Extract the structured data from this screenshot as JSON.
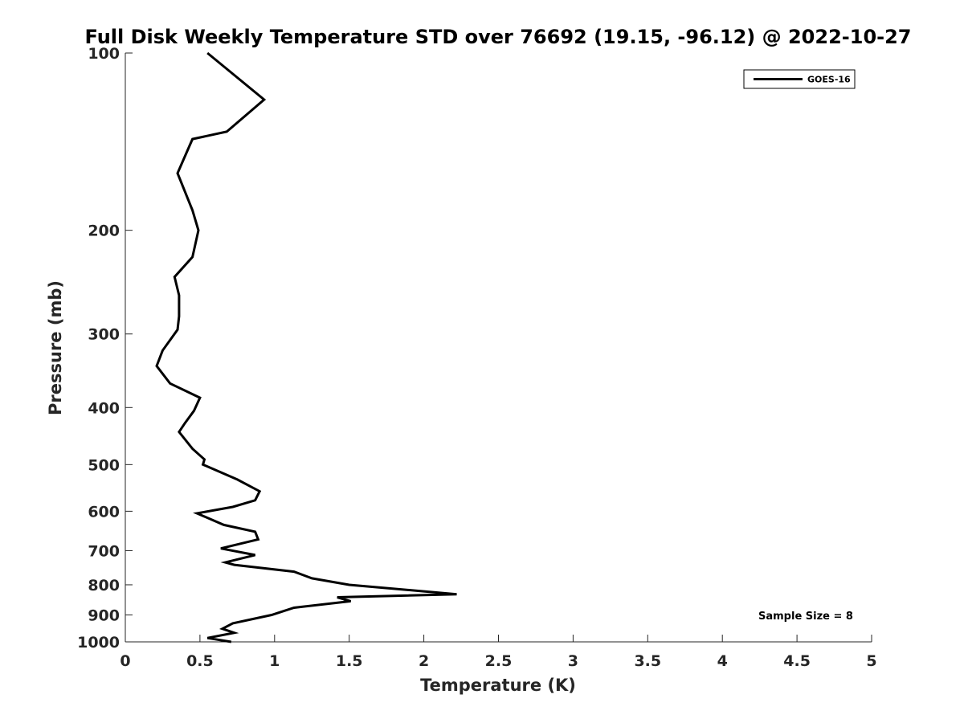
{
  "chart_data": {
    "type": "line",
    "title": "Full Disk Weekly Temperature STD over 76692 (19.15, -96.12) @ 2022-10-27",
    "xlabel": "Temperature (K)",
    "ylabel": "Pressure (mb)",
    "xlim": [
      0,
      5
    ],
    "ylim": [
      1000,
      100
    ],
    "y_scale": "log",
    "y_reversed": true,
    "x_ticks": [
      "0",
      "0.5",
      "1",
      "1.5",
      "2",
      "2.5",
      "3",
      "3.5",
      "4",
      "4.5",
      "5"
    ],
    "y_ticks": [
      "100",
      "200",
      "300",
      "400",
      "500",
      "600",
      "700",
      "800",
      "900",
      "1000"
    ],
    "grid": false,
    "legend_position": "top-right",
    "legend": [
      "GOES-16"
    ],
    "annotation": "Sample Size = 8",
    "series": [
      {
        "name": "GOES-16",
        "color": "#000000",
        "points": [
          [
            0.55,
            100
          ],
          [
            0.93,
            120
          ],
          [
            0.68,
            136
          ],
          [
            0.45,
            140
          ],
          [
            0.35,
            160
          ],
          [
            0.45,
            185
          ],
          [
            0.49,
            200
          ],
          [
            0.45,
            222
          ],
          [
            0.33,
            240
          ],
          [
            0.36,
            258
          ],
          [
            0.36,
            280
          ],
          [
            0.35,
            295
          ],
          [
            0.25,
            320
          ],
          [
            0.21,
            340
          ],
          [
            0.3,
            364
          ],
          [
            0.5,
            385
          ],
          [
            0.46,
            405
          ],
          [
            0.4,
            425
          ],
          [
            0.36,
            440
          ],
          [
            0.45,
            470
          ],
          [
            0.53,
            490
          ],
          [
            0.52,
            500
          ],
          [
            0.75,
            530
          ],
          [
            0.9,
            555
          ],
          [
            0.87,
            575
          ],
          [
            0.72,
            590
          ],
          [
            0.48,
            605
          ],
          [
            0.66,
            633
          ],
          [
            0.87,
            650
          ],
          [
            0.89,
            670
          ],
          [
            0.64,
            694
          ],
          [
            0.87,
            712
          ],
          [
            0.67,
            733
          ],
          [
            0.73,
            740
          ],
          [
            1.13,
            760
          ],
          [
            1.25,
            780
          ],
          [
            1.5,
            800
          ],
          [
            2.22,
            830
          ],
          [
            1.42,
            840
          ],
          [
            1.51,
            853
          ],
          [
            1.13,
            875
          ],
          [
            0.98,
            900
          ],
          [
            0.72,
            930
          ],
          [
            0.65,
            950
          ],
          [
            0.73,
            965
          ],
          [
            0.55,
            985
          ],
          [
            0.71,
            1000
          ]
        ]
      }
    ]
  }
}
